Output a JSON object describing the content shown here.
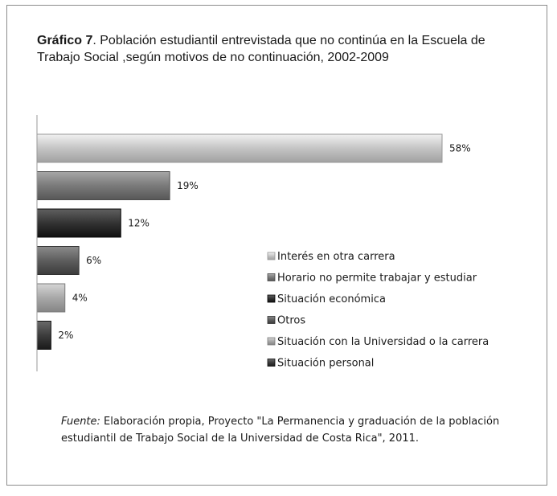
{
  "title": {
    "label_bold": "Gráfico 7",
    "text": ". Población estudiantil entrevistada que no continúa en la Escuela de Trabajo Social ,según motivos de no continuación, 2002-2009"
  },
  "chart_data": {
    "type": "bar",
    "orientation": "horizontal",
    "categories": [
      "Interés en otra carrera",
      "Horario  no permite trabajar y estudiar",
      "Situación económica",
      "Otros",
      "Situación con la Universidad o la carrera",
      "Situación personal"
    ],
    "values": [
      58,
      19,
      12,
      6,
      4,
      2
    ],
    "data_labels": [
      "58%",
      "19%",
      "12%",
      "6%",
      "4%",
      "2%"
    ],
    "colors": [
      "#c4c4c4",
      "#7a7a7a",
      "#333333",
      "#5e5e5e",
      "#a8a8a8",
      "#3d3d3d"
    ],
    "xlim": [
      0,
      60
    ],
    "grid": false,
    "legend_position": "right"
  },
  "source": {
    "label": "Fuente:",
    "text": " Elaboración propia,   Proyecto \"La Permanencia y graduación de la población estudiantil de Trabajo Social de la Universidad de Costa Rica\", 2011."
  }
}
